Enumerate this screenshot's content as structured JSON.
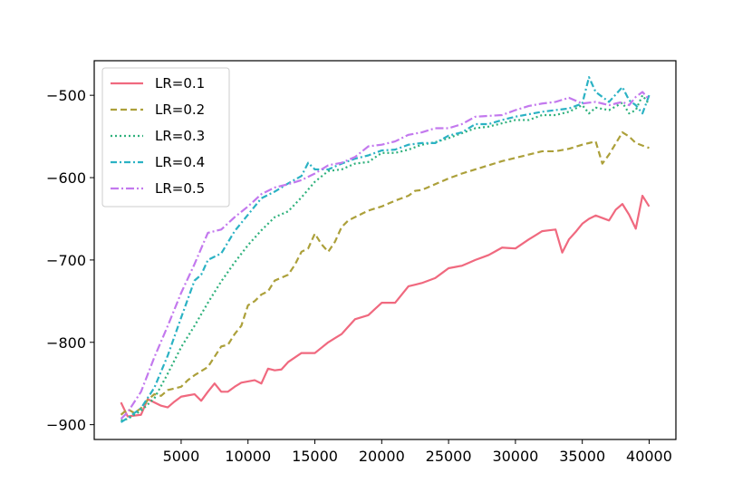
{
  "chart_data": {
    "type": "line",
    "title": "",
    "xlabel": "",
    "ylabel": "",
    "xlim": [
      -1500,
      42000
    ],
    "ylim": [
      -918,
      -458
    ],
    "xticks": [
      5000,
      10000,
      15000,
      20000,
      25000,
      30000,
      35000,
      40000
    ],
    "xtick_labels": [
      "5000",
      "10000",
      "15000",
      "20000",
      "25000",
      "30000",
      "35000",
      "40000"
    ],
    "yticks": [
      -900,
      -800,
      -700,
      -600,
      -500
    ],
    "ytick_labels": [
      "−900",
      "−800",
      "−700",
      "−600",
      "−500"
    ],
    "grid": false,
    "legend_position": "top-left",
    "x_start": 500,
    "x_step": 500,
    "series": [
      {
        "name": "LR=0.1",
        "color": "#f0697f",
        "dash": "solid",
        "keypoints": [
          [
            500,
            -873
          ],
          [
            1000,
            -890
          ],
          [
            2000,
            -888
          ],
          [
            2500,
            -869
          ],
          [
            3500,
            -877
          ],
          [
            4000,
            -879
          ],
          [
            4500,
            -872
          ],
          [
            5000,
            -866
          ],
          [
            6000,
            -863
          ],
          [
            6500,
            -871
          ],
          [
            7000,
            -860
          ],
          [
            7500,
            -850
          ],
          [
            8000,
            -860
          ],
          [
            8500,
            -860
          ],
          [
            9000,
            -854
          ],
          [
            9500,
            -849
          ],
          [
            10500,
            -846
          ],
          [
            11000,
            -850
          ],
          [
            11500,
            -832
          ],
          [
            12000,
            -834
          ],
          [
            12500,
            -833
          ],
          [
            13000,
            -824
          ],
          [
            14000,
            -813
          ],
          [
            15000,
            -813
          ],
          [
            16000,
            -800
          ],
          [
            17000,
            -790
          ],
          [
            18000,
            -772
          ],
          [
            19000,
            -767
          ],
          [
            20000,
            -752
          ],
          [
            21000,
            -752
          ],
          [
            22000,
            -732
          ],
          [
            23000,
            -728
          ],
          [
            24000,
            -722
          ],
          [
            25000,
            -710
          ],
          [
            26000,
            -707
          ],
          [
            27000,
            -700
          ],
          [
            28000,
            -694
          ],
          [
            29000,
            -685
          ],
          [
            30000,
            -686
          ],
          [
            31000,
            -675
          ],
          [
            32000,
            -665
          ],
          [
            33000,
            -663
          ],
          [
            33500,
            -691
          ],
          [
            34000,
            -675
          ],
          [
            34500,
            -666
          ],
          [
            35000,
            -656
          ],
          [
            35500,
            -650
          ],
          [
            36000,
            -646
          ],
          [
            37000,
            -652
          ],
          [
            37500,
            -639
          ],
          [
            38000,
            -632
          ],
          [
            38500,
            -645
          ],
          [
            39000,
            -662
          ],
          [
            39500,
            -622
          ],
          [
            40000,
            -635
          ]
        ]
      },
      {
        "name": "LR=0.2",
        "color": "#aca03a",
        "dash": "7,4",
        "keypoints": [
          [
            500,
            -888
          ],
          [
            1000,
            -881
          ],
          [
            1500,
            -886
          ],
          [
            2000,
            -880
          ],
          [
            2500,
            -870
          ],
          [
            3000,
            -863
          ],
          [
            3500,
            -865
          ],
          [
            4000,
            -858
          ],
          [
            5000,
            -854
          ],
          [
            5500,
            -846
          ],
          [
            6000,
            -840
          ],
          [
            7000,
            -830
          ],
          [
            8000,
            -805
          ],
          [
            8500,
            -803
          ],
          [
            9000,
            -790
          ],
          [
            9500,
            -780
          ],
          [
            10000,
            -755
          ],
          [
            10500,
            -750
          ],
          [
            11000,
            -742
          ],
          [
            11500,
            -738
          ],
          [
            12000,
            -725
          ],
          [
            13000,
            -718
          ],
          [
            13500,
            -706
          ],
          [
            14000,
            -690
          ],
          [
            14500,
            -686
          ],
          [
            15000,
            -668
          ],
          [
            15500,
            -681
          ],
          [
            16000,
            -690
          ],
          [
            16500,
            -678
          ],
          [
            17000,
            -660
          ],
          [
            17500,
            -652
          ],
          [
            18000,
            -648
          ],
          [
            19000,
            -640
          ],
          [
            20000,
            -635
          ],
          [
            21000,
            -628
          ],
          [
            22000,
            -622
          ],
          [
            22500,
            -616
          ],
          [
            23000,
            -615
          ],
          [
            24000,
            -608
          ],
          [
            25000,
            -601
          ],
          [
            26000,
            -595
          ],
          [
            27000,
            -590
          ],
          [
            28000,
            -585
          ],
          [
            29000,
            -580
          ],
          [
            30000,
            -576
          ],
          [
            31000,
            -572
          ],
          [
            32000,
            -568
          ],
          [
            33000,
            -568
          ],
          [
            34000,
            -565
          ],
          [
            35000,
            -560
          ],
          [
            36000,
            -556
          ],
          [
            36500,
            -583
          ],
          [
            37000,
            -572
          ],
          [
            38000,
            -545
          ],
          [
            38500,
            -550
          ],
          [
            39000,
            -558
          ],
          [
            40000,
            -564
          ]
        ]
      },
      {
        "name": "LR=0.3",
        "color": "#2fb17c",
        "dash": "2,3",
        "keypoints": [
          [
            500,
            -895
          ],
          [
            1000,
            -893
          ],
          [
            2000,
            -883
          ],
          [
            3000,
            -868
          ],
          [
            4000,
            -838
          ],
          [
            5000,
            -806
          ],
          [
            6000,
            -780
          ],
          [
            7000,
            -752
          ],
          [
            8000,
            -726
          ],
          [
            9000,
            -703
          ],
          [
            10000,
            -682
          ],
          [
            11000,
            -664
          ],
          [
            12000,
            -648
          ],
          [
            13000,
            -641
          ],
          [
            14000,
            -624
          ],
          [
            15000,
            -605
          ],
          [
            16000,
            -592
          ],
          [
            17000,
            -590
          ],
          [
            18000,
            -583
          ],
          [
            19000,
            -581
          ],
          [
            20000,
            -570
          ],
          [
            21000,
            -570
          ],
          [
            22000,
            -566
          ],
          [
            23000,
            -560
          ],
          [
            24000,
            -557
          ],
          [
            25000,
            -552
          ],
          [
            26000,
            -546
          ],
          [
            27000,
            -540
          ],
          [
            28000,
            -538
          ],
          [
            29000,
            -534
          ],
          [
            30000,
            -530
          ],
          [
            31000,
            -530
          ],
          [
            32000,
            -524
          ],
          [
            33000,
            -524
          ],
          [
            34000,
            -520
          ],
          [
            35000,
            -512
          ],
          [
            35500,
            -522
          ],
          [
            36000,
            -515
          ],
          [
            37000,
            -518
          ],
          [
            38000,
            -509
          ],
          [
            38500,
            -522
          ],
          [
            39000,
            -518
          ],
          [
            39500,
            -500
          ],
          [
            40000,
            -511
          ]
        ]
      },
      {
        "name": "LR=0.4",
        "color": "#2bb2c4",
        "dash": "7,3,2,3",
        "keypoints": [
          [
            500,
            -897
          ],
          [
            1000,
            -892
          ],
          [
            2000,
            -880
          ],
          [
            3000,
            -855
          ],
          [
            4000,
            -816
          ],
          [
            5000,
            -770
          ],
          [
            6000,
            -725
          ],
          [
            6500,
            -718
          ],
          [
            7000,
            -700
          ],
          [
            8000,
            -692
          ],
          [
            9000,
            -665
          ],
          [
            10000,
            -645
          ],
          [
            11000,
            -625
          ],
          [
            12000,
            -617
          ],
          [
            13000,
            -607
          ],
          [
            14000,
            -598
          ],
          [
            14500,
            -582
          ],
          [
            15000,
            -590
          ],
          [
            16000,
            -590
          ],
          [
            17000,
            -583
          ],
          [
            18000,
            -577
          ],
          [
            19000,
            -573
          ],
          [
            20000,
            -567
          ],
          [
            21000,
            -566
          ],
          [
            22000,
            -560
          ],
          [
            23000,
            -558
          ],
          [
            24000,
            -558
          ],
          [
            25000,
            -549
          ],
          [
            26000,
            -545
          ],
          [
            27000,
            -535
          ],
          [
            28000,
            -535
          ],
          [
            29000,
            -530
          ],
          [
            30000,
            -526
          ],
          [
            31000,
            -523
          ],
          [
            32000,
            -520
          ],
          [
            33000,
            -518
          ],
          [
            34000,
            -516
          ],
          [
            35000,
            -510
          ],
          [
            35500,
            -478
          ],
          [
            36000,
            -496
          ],
          [
            37000,
            -508
          ],
          [
            38000,
            -490
          ],
          [
            38500,
            -506
          ],
          [
            39000,
            -512
          ],
          [
            39500,
            -522
          ],
          [
            40000,
            -500
          ]
        ]
      },
      {
        "name": "LR=0.5",
        "color": "#c379ee",
        "dash": "9,3,2,3",
        "keypoints": [
          [
            500,
            -893
          ],
          [
            1000,
            -885
          ],
          [
            2000,
            -860
          ],
          [
            3000,
            -818
          ],
          [
            4000,
            -780
          ],
          [
            5000,
            -740
          ],
          [
            6000,
            -705
          ],
          [
            7000,
            -667
          ],
          [
            8000,
            -663
          ],
          [
            9000,
            -648
          ],
          [
            10000,
            -635
          ],
          [
            11000,
            -620
          ],
          [
            12000,
            -612
          ],
          [
            13000,
            -608
          ],
          [
            14000,
            -603
          ],
          [
            15000,
            -595
          ],
          [
            16000,
            -585
          ],
          [
            17000,
            -582
          ],
          [
            18000,
            -575
          ],
          [
            19000,
            -562
          ],
          [
            20000,
            -560
          ],
          [
            21000,
            -556
          ],
          [
            22000,
            -548
          ],
          [
            23000,
            -545
          ],
          [
            24000,
            -540
          ],
          [
            25000,
            -540
          ],
          [
            26000,
            -535
          ],
          [
            27000,
            -526
          ],
          [
            28000,
            -525
          ],
          [
            29000,
            -524
          ],
          [
            30000,
            -518
          ],
          [
            31000,
            -513
          ],
          [
            32000,
            -510
          ],
          [
            33000,
            -508
          ],
          [
            34000,
            -503
          ],
          [
            35000,
            -510
          ],
          [
            36000,
            -508
          ],
          [
            37000,
            -512
          ],
          [
            38000,
            -508
          ],
          [
            38500,
            -512
          ],
          [
            39000,
            -502
          ],
          [
            39500,
            -496
          ],
          [
            40000,
            -505
          ]
        ]
      }
    ]
  }
}
